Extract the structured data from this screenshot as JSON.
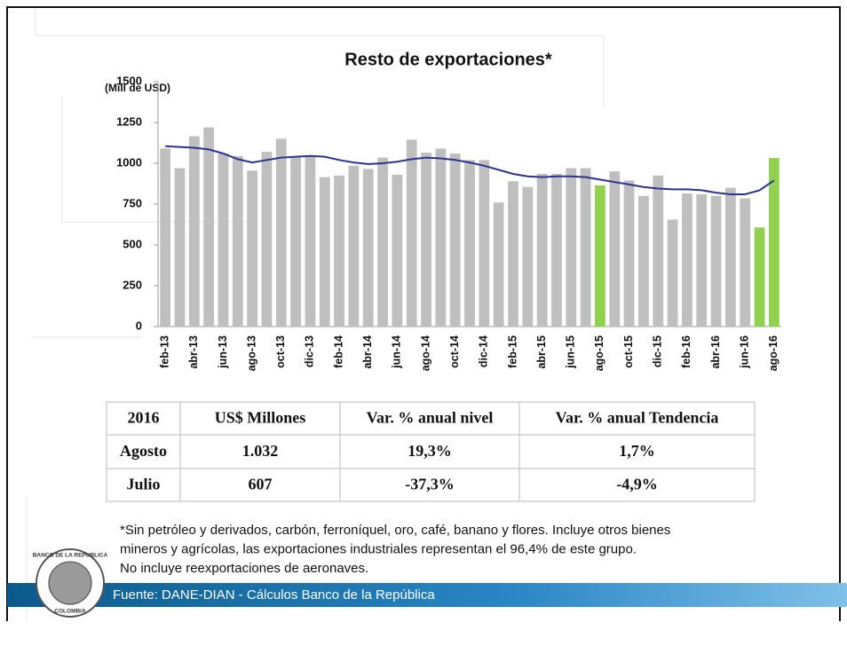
{
  "chart_data": {
    "type": "bar",
    "title": "Resto de exportaciones*",
    "y_axis_label": "(Mill de USD)",
    "categories": [
      "feb-13",
      null,
      "abr-13",
      null,
      "jun-13",
      null,
      "ago-13",
      null,
      "oct-13",
      null,
      "dic-13",
      null,
      "feb-14",
      null,
      "abr-14",
      null,
      "jun-14",
      null,
      "ago-14",
      null,
      "oct-14",
      null,
      "dic-14",
      null,
      "feb-15",
      null,
      "abr-15",
      null,
      "jun-15",
      null,
      "ago-15",
      null,
      "oct-15",
      null,
      "dic-15",
      null,
      "feb-16",
      null,
      "abr-16",
      null,
      "jun-16",
      null,
      "ago-16"
    ],
    "bars": {
      "values": [
        1090,
        970,
        1165,
        1220,
        1060,
        1045,
        955,
        1070,
        1150,
        1040,
        1040,
        915,
        925,
        985,
        965,
        1035,
        930,
        1145,
        1065,
        1090,
        1060,
        1020,
        1020,
        760,
        890,
        855,
        935,
        935,
        970,
        970,
        865,
        950,
        895,
        800,
        925,
        655,
        815,
        810,
        800,
        850,
        785,
        607,
        1032
      ],
      "colors": [
        "#bfbfbf",
        "#bfbfbf",
        "#bfbfbf",
        "#bfbfbf",
        "#bfbfbf",
        "#bfbfbf",
        "#bfbfbf",
        "#bfbfbf",
        "#bfbfbf",
        "#bfbfbf",
        "#bfbfbf",
        "#bfbfbf",
        "#bfbfbf",
        "#bfbfbf",
        "#bfbfbf",
        "#bfbfbf",
        "#bfbfbf",
        "#bfbfbf",
        "#bfbfbf",
        "#bfbfbf",
        "#bfbfbf",
        "#bfbfbf",
        "#bfbfbf",
        "#bfbfbf",
        "#bfbfbf",
        "#bfbfbf",
        "#bfbfbf",
        "#bfbfbf",
        "#bfbfbf",
        "#bfbfbf",
        "#92d050",
        "#bfbfbf",
        "#bfbfbf",
        "#bfbfbf",
        "#bfbfbf",
        "#bfbfbf",
        "#bfbfbf",
        "#bfbfbf",
        "#bfbfbf",
        "#bfbfbf",
        "#bfbfbf",
        "#92d050",
        "#92d050"
      ]
    },
    "trend": {
      "type": "line",
      "color": "#2e3192",
      "values": [
        1105,
        1100,
        1095,
        1085,
        1060,
        1025,
        1005,
        1020,
        1035,
        1040,
        1045,
        1040,
        1020,
        1005,
        995,
        1000,
        1010,
        1025,
        1035,
        1030,
        1020,
        1005,
        985,
        960,
        935,
        920,
        915,
        920,
        920,
        915,
        900,
        885,
        870,
        855,
        845,
        840,
        840,
        835,
        820,
        810,
        810,
        835,
        895
      ]
    },
    "ylim": [
      0,
      1500
    ],
    "yticks": [
      0,
      250,
      500,
      750,
      1000,
      1250,
      1500
    ],
    "grid": false
  },
  "table": {
    "header": [
      "2016",
      "US$ Millones",
      "Var. % anual nivel",
      "Var. % anual Tendencia"
    ],
    "rows": [
      [
        "Agosto",
        "1.032",
        "19,3%",
        "1,7%"
      ],
      [
        "Julio",
        "607",
        "-37,3%",
        "-4,9%"
      ]
    ]
  },
  "footnote": [
    "*Sin petróleo y derivados, carbón, ferroníquel, oro, café, banano y flores. Incluye otros bienes",
    "mineros y agrícolas, las exportaciones industriales representan el 96,4% de este grupo.",
    "No incluye reexportaciones de aeronaves."
  ],
  "source": "Fuente: DANE-DIAN - Cálculos Banco de la República",
  "logo": {
    "top": "BANCO DE LA REPUBLICA",
    "bottom": "COLOMBIA"
  }
}
